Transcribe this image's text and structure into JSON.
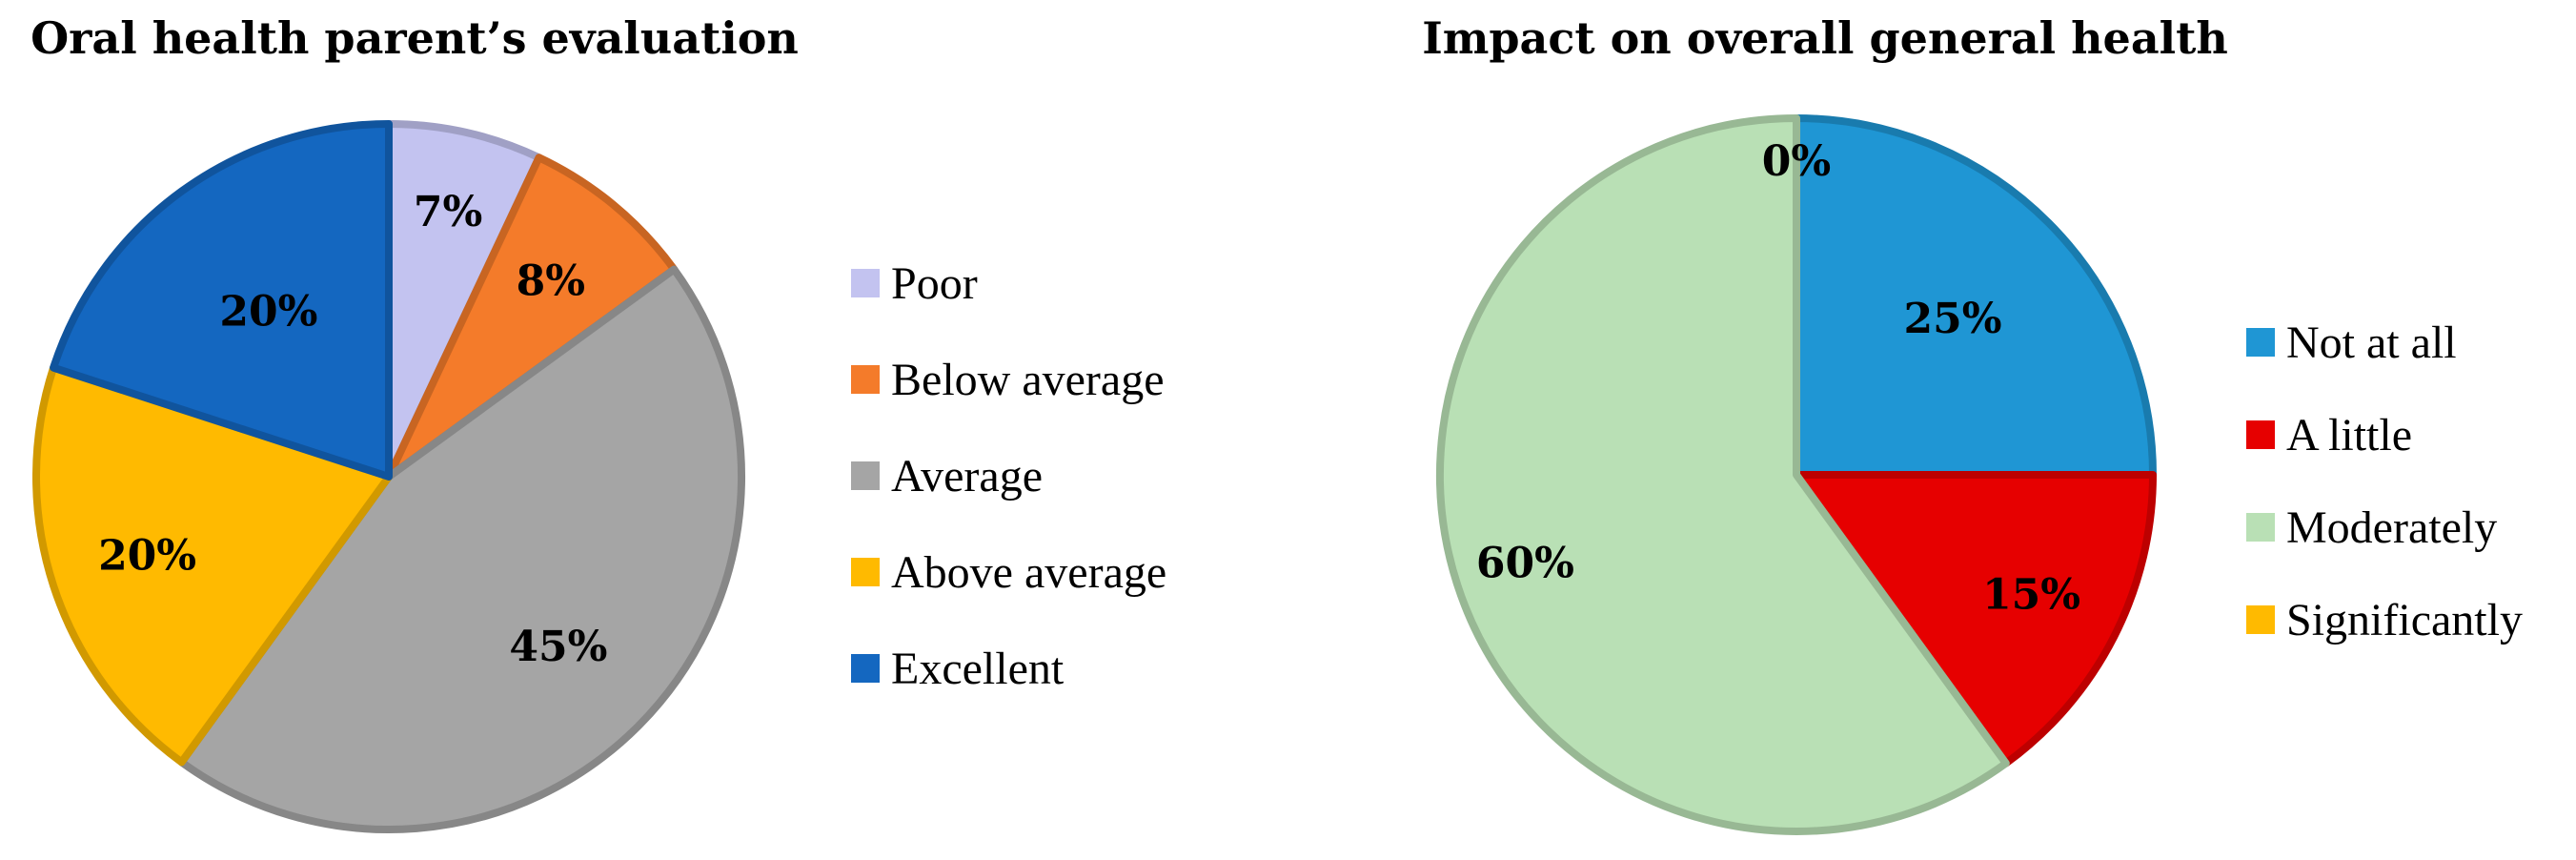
{
  "chart_data": [
    {
      "type": "pie",
      "title": "Oral health parent’s evaluation",
      "legend_position": "right",
      "start_angle_deg": 0,
      "direction": "clockwise",
      "slices": [
        {
          "name": "Poor",
          "value": 7,
          "label": "7%",
          "color": "#c3c3f0"
        },
        {
          "name": "Below average",
          "value": 8,
          "label": "8%",
          "color": "#f47b2a"
        },
        {
          "name": "Average",
          "value": 45,
          "label": "45%",
          "color": "#a5a5a5"
        },
        {
          "name": "Above average",
          "value": 20,
          "label": "20%",
          "color": "#ffba00"
        },
        {
          "name": "Excellent",
          "value": 20,
          "label": "20%",
          "color": "#1467c0"
        }
      ]
    },
    {
      "type": "pie",
      "title": "Impact on overall general health",
      "legend_position": "right",
      "start_angle_deg": 0,
      "direction": "clockwise",
      "slices": [
        {
          "name": "Not at all",
          "value": 25,
          "label": "25%",
          "color": "#1f96d4"
        },
        {
          "name": "A little",
          "value": 15,
          "label": "15%",
          "color": "#e60000"
        },
        {
          "name": "Moderately",
          "value": 60,
          "label": "60%",
          "color": "#b9e0b5"
        },
        {
          "name": "Significantly",
          "value": 0,
          "label": "0%",
          "color": "#ffba00"
        }
      ]
    }
  ]
}
